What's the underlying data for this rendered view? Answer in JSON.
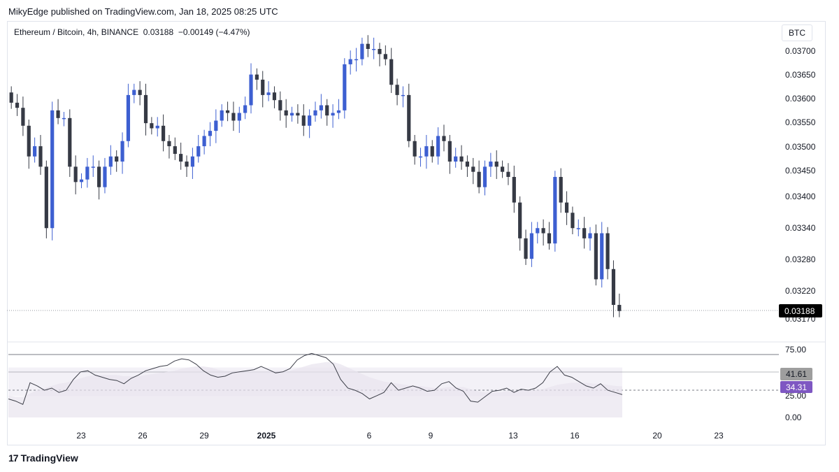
{
  "header": {
    "published": "MikyEdge published on TradingView.com, Jan 18, 2025 08:25 UTC"
  },
  "legend": {
    "symbol": "Ethereum / Bitcoin, 4h, BINANCE",
    "price": "0.03188",
    "change": "−0.00149 (−4.47%)"
  },
  "currency": "BTC",
  "footer": {
    "brand_logo": "17",
    "brand": "TradingView"
  },
  "chart_data": [
    {
      "type": "candlestick",
      "title": "Ethereum / Bitcoin, 4h, BINANCE",
      "ylim": [
        0.0315,
        0.0373
      ],
      "y_ticks": [
        "0.03700",
        "0.03650",
        "0.03600",
        "0.03550",
        "0.03500",
        "0.03450",
        "0.03400",
        "0.03340",
        "0.03280",
        "0.03220",
        "0.03170"
      ],
      "x_ticks": [
        "23",
        "26",
        "29",
        "2025",
        "6",
        "9",
        "13",
        "16",
        "20",
        "23"
      ],
      "last_price_label": "0.03188",
      "series_close": [
        0.03595,
        0.03585,
        0.0355,
        0.0349,
        0.0351,
        0.0347,
        0.0335,
        0.0358,
        0.03565,
        0.03565,
        0.0347,
        0.0344,
        0.03445,
        0.0347,
        0.0347,
        0.0343,
        0.0347,
        0.0349,
        0.0348,
        0.0352,
        0.0361,
        0.0362,
        0.0361,
        0.03555,
        0.03545,
        0.0355,
        0.0352,
        0.0351,
        0.03495,
        0.0348,
        0.0347,
        0.0349,
        0.0351,
        0.0353,
        0.0354,
        0.0356,
        0.0358,
        0.03575,
        0.0356,
        0.03575,
        0.0359,
        0.0365,
        0.0364,
        0.0361,
        0.03615,
        0.036,
        0.0358,
        0.0357,
        0.03575,
        0.0357,
        0.0355,
        0.0357,
        0.0358,
        0.0359,
        0.0357,
        0.03575,
        0.0358,
        0.0367,
        0.0368,
        0.0368,
        0.0371,
        0.037,
        0.037,
        0.0369,
        0.0368,
        0.0363,
        0.0361,
        0.0361,
        0.0352,
        0.0349,
        0.0349,
        0.0351,
        0.0349,
        0.0353,
        0.0352,
        0.0348,
        0.0349,
        0.0348,
        0.0347,
        0.0346,
        0.0343,
        0.0347,
        0.0348,
        0.0347,
        0.0346,
        0.0345,
        0.034,
        0.0333,
        0.0329,
        0.0334,
        0.0335,
        0.0334,
        0.0332,
        0.0345,
        0.034,
        0.0338,
        0.0335,
        0.0335,
        0.0333,
        0.0334,
        0.0325,
        0.0334,
        0.0327,
        0.032,
        0.03188
      ],
      "candle_up_color": "#3d5fd1",
      "candle_down_color": "#363a45"
    },
    {
      "type": "line",
      "title": "RSI",
      "ylim": [
        0,
        100
      ],
      "y_ticks": [
        "75.00",
        "25.00",
        "0.00"
      ],
      "band_top": 75,
      "band_bottom": 30,
      "labels": {
        "rsi_ma": "41.61",
        "rsi": "34.31"
      },
      "rsi_values": [
        30,
        28,
        25,
        45,
        42,
        38,
        40,
        36,
        38,
        48,
        55,
        56,
        52,
        50,
        48,
        47,
        44,
        49,
        52,
        56,
        58,
        60,
        61,
        65,
        67,
        66,
        62,
        56,
        52,
        50,
        51,
        54,
        55,
        56,
        57,
        60,
        57,
        54,
        55,
        58,
        66,
        70,
        72,
        70,
        68,
        62,
        48,
        40,
        38,
        35,
        30,
        33,
        36,
        45,
        38,
        40,
        42,
        40,
        37,
        38,
        44,
        46,
        40,
        37,
        28,
        27,
        32,
        37,
        38,
        40,
        36,
        39,
        38,
        40,
        45,
        55,
        60,
        52,
        50,
        46,
        42,
        40,
        44,
        38,
        36,
        34
      ],
      "rsi_ma_values": [
        33,
        32,
        32,
        35,
        38,
        40,
        42,
        44,
        45,
        47,
        49,
        51,
        52,
        52,
        52,
        52,
        51,
        51,
        51,
        52,
        53,
        54,
        55,
        56,
        58,
        59,
        60,
        60,
        59,
        57,
        56,
        56,
        56,
        56,
        56,
        56,
        56,
        56,
        56,
        56,
        58,
        60,
        62,
        63,
        64,
        64,
        62,
        59,
        56,
        53,
        50,
        48,
        46,
        45,
        44,
        43,
        42,
        42,
        41,
        40,
        40,
        41,
        41,
        41,
        39,
        37,
        36,
        36,
        36,
        37,
        37,
        38,
        38,
        38,
        39,
        41,
        43,
        44,
        45,
        45,
        45,
        44,
        44,
        43,
        42,
        41.61
      ]
    }
  ]
}
